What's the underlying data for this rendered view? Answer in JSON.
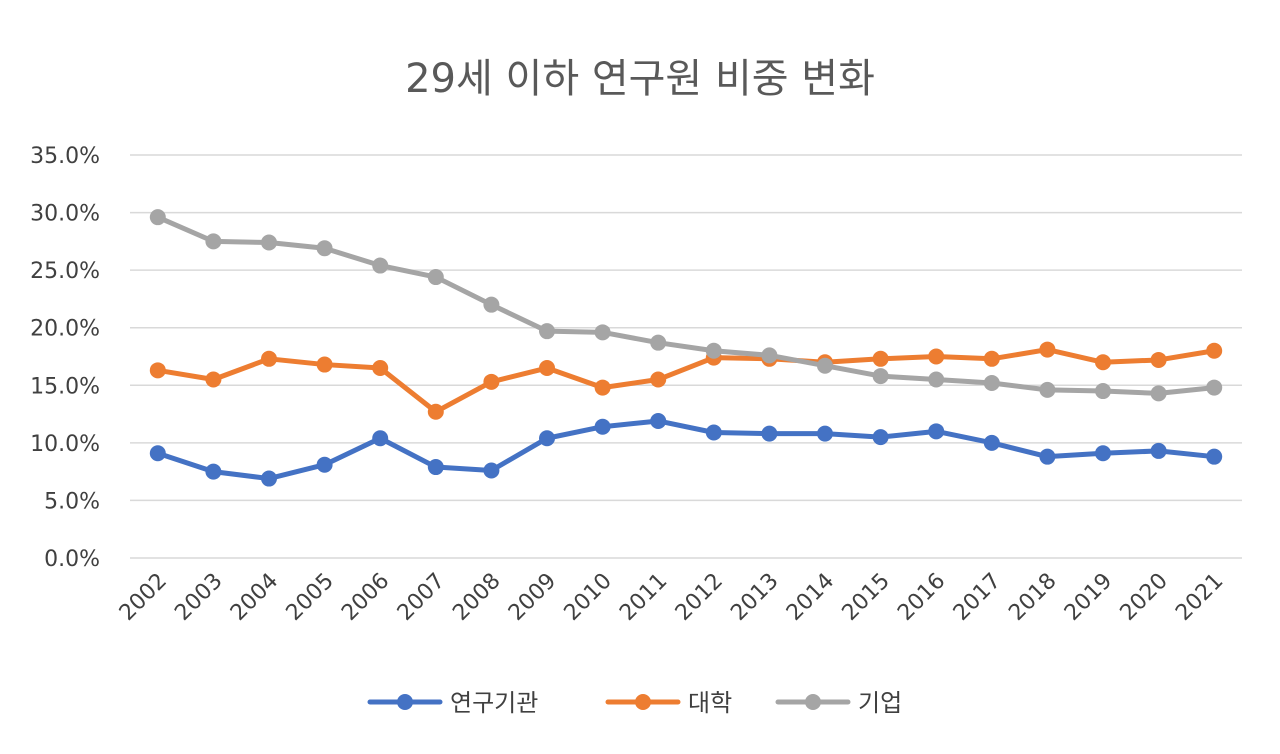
{
  "chart_data": {
    "type": "line",
    "title": "29세 이하 연구원 비중 변화",
    "xlabel": "",
    "ylabel": "",
    "categories": [
      "2002",
      "2003",
      "2004",
      "2005",
      "2006",
      "2007",
      "2008",
      "2009",
      "2010",
      "2011",
      "2012",
      "2013",
      "2014",
      "2015",
      "2016",
      "2017",
      "2018",
      "2019",
      "2020",
      "2021"
    ],
    "ylim": [
      0,
      35
    ],
    "yticks": [
      0,
      5,
      10,
      15,
      20,
      25,
      30,
      35
    ],
    "ytick_labels": [
      "0.0%",
      "5.0%",
      "10.0%",
      "15.0%",
      "20.0%",
      "25.0%",
      "30.0%",
      "35.0%"
    ],
    "grid": true,
    "legend_position": "bottom",
    "series": [
      {
        "name": "연구기관",
        "color": "#4472C4",
        "values": [
          9.1,
          7.5,
          6.9,
          8.1,
          10.4,
          7.9,
          7.6,
          10.4,
          11.4,
          11.9,
          10.9,
          10.8,
          10.8,
          10.5,
          11.0,
          10.0,
          8.8,
          9.1,
          9.3,
          8.8
        ]
      },
      {
        "name": "대학",
        "color": "#ED7D31",
        "values": [
          16.3,
          15.5,
          17.3,
          16.8,
          16.5,
          12.7,
          15.3,
          16.5,
          14.8,
          15.5,
          17.4,
          17.3,
          17.0,
          17.3,
          17.5,
          17.3,
          18.1,
          17.0,
          17.2,
          18.0
        ]
      },
      {
        "name": "기업",
        "color": "#A5A5A5",
        "values": [
          29.6,
          27.5,
          27.4,
          26.9,
          25.4,
          24.4,
          22.0,
          19.7,
          19.6,
          18.7,
          18.0,
          17.6,
          16.7,
          15.8,
          15.5,
          15.2,
          14.6,
          14.5,
          14.3,
          14.8
        ]
      }
    ]
  }
}
